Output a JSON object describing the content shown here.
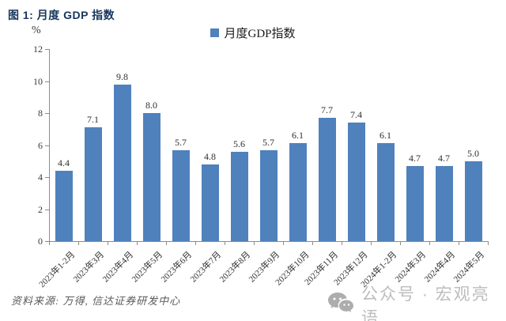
{
  "figure_title": "图 1: 月度 GDP 指数",
  "y_axis": {
    "unit": "%"
  },
  "legend": {
    "label": "月度GDP指数"
  },
  "source_note": "资料来源: 万得, 信达证券研发中心",
  "watermark": {
    "text": "公众号 · 宏观亮语",
    "icon": "wechat-icon"
  },
  "colors": {
    "bar": "#4F81BD",
    "title": "#17365D",
    "axis": "#8C8C8C",
    "tick_label": "#3A3A3A",
    "source": "#595959",
    "watermark_text": "#BDBDBD",
    "watermark_icon": "#ADADAD"
  },
  "chart_data": {
    "type": "bar",
    "title": "月度GDP指数",
    "categories": [
      "2023年1-2月",
      "2023年3月",
      "2023年4月",
      "2023年5月",
      "2023年6月",
      "2023年7月",
      "2023年8月",
      "2023年9月",
      "2023年10月",
      "2023年11月",
      "2023年12月",
      "2024年1-2月",
      "2024年3月",
      "2024年4月",
      "2024年5月"
    ],
    "values": [
      4.4,
      7.1,
      9.8,
      8.0,
      5.7,
      4.8,
      5.6,
      5.7,
      6.1,
      7.7,
      7.4,
      6.1,
      4.7,
      4.7,
      5.0
    ],
    "xlabel": "",
    "ylabel": "%",
    "ylim": [
      0,
      12
    ],
    "yticks": [
      0,
      2,
      4,
      6,
      8,
      10,
      12
    ],
    "grid": false,
    "legend_position": "top-center",
    "data_labels": true,
    "bar_color": "#4F81BD"
  }
}
